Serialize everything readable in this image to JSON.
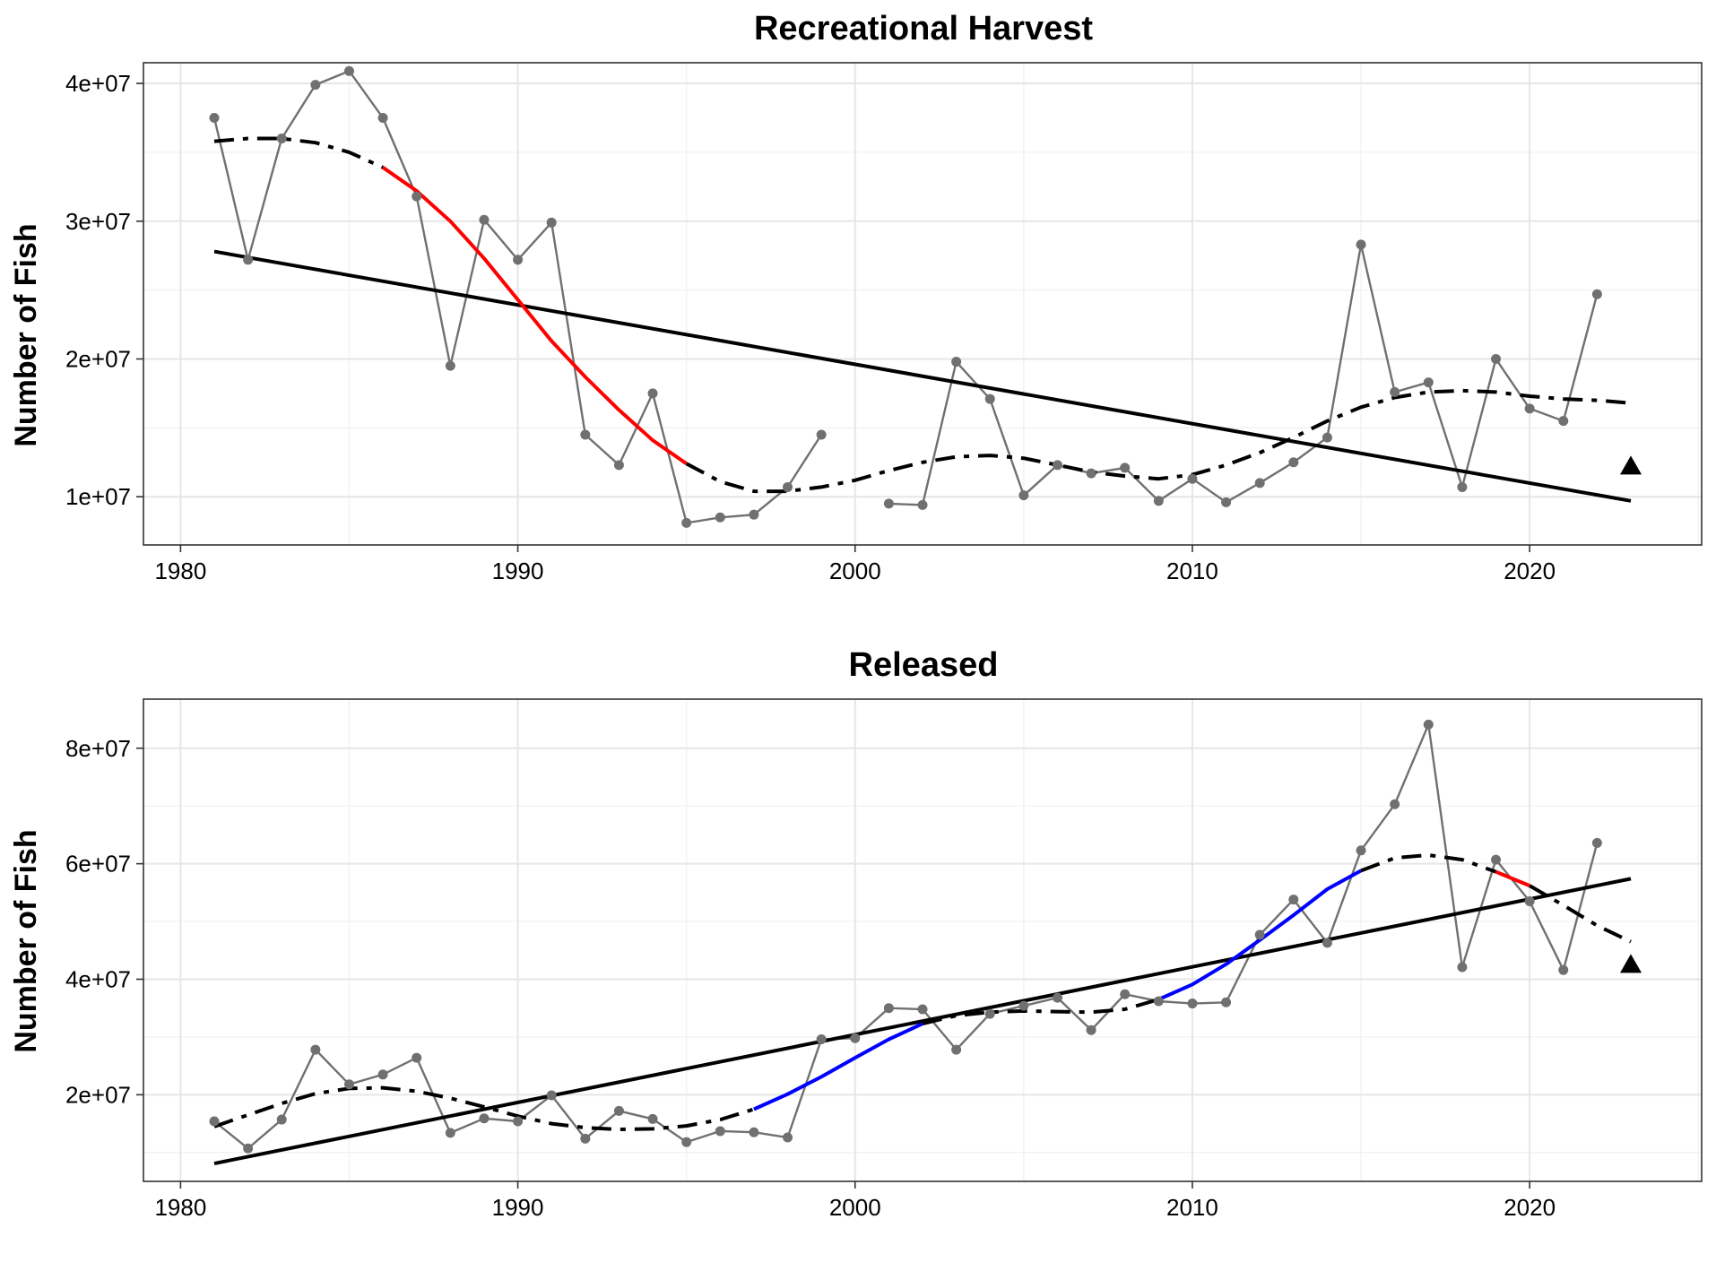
{
  "chart_data": [
    {
      "type": "line",
      "title": "Recreational Harvest",
      "xlabel": "",
      "ylabel": "Number of Fish",
      "xlim": [
        1978.9,
        2025.1
      ],
      "ylim": [
        6500000,
        41500000
      ],
      "x_ticks": [
        1980,
        1990,
        2000,
        2010,
        2020
      ],
      "x_tick_labels": [
        "1980",
        "1990",
        "2000",
        "2010",
        "2020"
      ],
      "y_ticks": [
        10000000,
        20000000,
        30000000,
        40000000
      ],
      "y_tick_labels": [
        "1e+07",
        "2e+07",
        "3e+07",
        "4e+07"
      ],
      "grid": true,
      "colors": {
        "observed": "#707070",
        "trend": "#000000",
        "decrease": "#ff0000",
        "increase": "#0000ff"
      },
      "observed": {
        "x": [
          1981,
          1982,
          1983,
          1984,
          1985,
          1986,
          1987,
          1988,
          1989,
          1990,
          1991,
          1992,
          1993,
          1994,
          1995,
          1996,
          1997,
          1998,
          1999,
          2000,
          2001,
          2002,
          2003,
          2004,
          2005,
          2006,
          2007,
          2008,
          2009,
          2010,
          2011,
          2012,
          2013,
          2014,
          2015,
          2016,
          2017,
          2018,
          2019,
          2020,
          2021,
          2022
        ],
        "y": [
          37500000,
          27200000,
          36000000,
          39900000,
          40900000,
          37500000,
          31800000,
          19500000,
          30100000,
          27200000,
          29900000,
          14500000,
          12300000,
          17500000,
          8100000,
          8500000,
          8700000,
          10700000,
          14500000,
          null,
          9500000,
          9400000,
          19800000,
          17100000,
          10100000,
          12300000,
          11700000,
          12100000,
          9700000,
          11300000,
          9600000,
          11000000,
          12500000,
          14300000,
          28300000,
          17600000,
          18300000,
          10700000,
          20000000,
          16400000,
          15500000,
          24700000
        ]
      },
      "linear_trend": {
        "x": [
          1981,
          2023
        ],
        "y": [
          27800000,
          9700000
        ]
      },
      "smooth": {
        "x": [
          1981,
          1982,
          1983,
          1984,
          1985,
          1986,
          1987,
          1988,
          1989,
          1990,
          1991,
          1992,
          1993,
          1994,
          1995,
          1996,
          1997,
          1998,
          1999,
          2000,
          2001,
          2002,
          2003,
          2004,
          2005,
          2006,
          2007,
          2008,
          2009,
          2010,
          2011,
          2012,
          2013,
          2014,
          2015,
          2016,
          2017,
          2018,
          2019,
          2020,
          2021,
          2022,
          2023
        ],
        "y": [
          35800000,
          36000000,
          36000000,
          35700000,
          35000000,
          33900000,
          32200000,
          30000000,
          27300000,
          24300000,
          21300000,
          18700000,
          16300000,
          14100000,
          12400000,
          11100000,
          10400000,
          10400000,
          10700000,
          11200000,
          11900000,
          12500000,
          12900000,
          13000000,
          12800000,
          12300000,
          11800000,
          11500000,
          11300000,
          11600000,
          12300000,
          13200000,
          14300000,
          15500000,
          16500000,
          17200000,
          17600000,
          17700000,
          17600000,
          17300000,
          17100000,
          17000000,
          16800000
        ],
        "segments": [
          {
            "from": 1981,
            "to": 1986,
            "trend": "none"
          },
          {
            "from": 1986,
            "to": 1995,
            "trend": "decrease"
          },
          {
            "from": 1995,
            "to": 2023,
            "trend": "none"
          }
        ]
      },
      "marker": {
        "x": 2023,
        "y": 12200000,
        "shape": "triangle"
      }
    },
    {
      "type": "line",
      "title": "Released",
      "xlabel": "",
      "ylabel": "Number of Fish",
      "xlim": [
        1978.9,
        2025.1
      ],
      "ylim": [
        5000000,
        88500000
      ],
      "x_ticks": [
        1980,
        1990,
        2000,
        2010,
        2020
      ],
      "x_tick_labels": [
        "1980",
        "1990",
        "2000",
        "2010",
        "2020"
      ],
      "y_ticks": [
        20000000,
        40000000,
        60000000,
        80000000
      ],
      "y_tick_labels": [
        "2e+07",
        "4e+07",
        "6e+07",
        "8e+07"
      ],
      "grid": true,
      "colors": {
        "observed": "#707070",
        "trend": "#000000",
        "decrease": "#ff0000",
        "increase": "#0000ff"
      },
      "observed": {
        "x": [
          1981,
          1982,
          1983,
          1984,
          1985,
          1986,
          1987,
          1988,
          1989,
          1990,
          1991,
          1992,
          1993,
          1994,
          1995,
          1996,
          1997,
          1998,
          1999,
          2000,
          2001,
          2002,
          2003,
          2004,
          2005,
          2006,
          2007,
          2008,
          2009,
          2010,
          2011,
          2012,
          2013,
          2014,
          2015,
          2016,
          2017,
          2018,
          2019,
          2020,
          2021,
          2022
        ],
        "y": [
          15400000,
          10700000,
          15700000,
          27800000,
          21800000,
          23500000,
          26400000,
          13400000,
          15900000,
          15400000,
          19900000,
          12400000,
          17200000,
          15800000,
          11800000,
          13700000,
          13500000,
          12600000,
          29600000,
          29800000,
          35000000,
          34800000,
          27800000,
          34000000,
          35400000,
          36800000,
          31200000,
          37400000,
          36200000,
          35800000,
          36000000,
          47700000,
          53800000,
          46300000,
          62300000,
          70300000,
          84100000,
          42100000,
          60700000,
          53500000,
          41600000,
          63600000
        ]
      },
      "linear_trend": {
        "x": [
          1981,
          2023
        ],
        "y": [
          8100000,
          57400000
        ]
      },
      "smooth": {
        "x": [
          1981,
          1982,
          1983,
          1984,
          1985,
          1986,
          1987,
          1988,
          1989,
          1990,
          1991,
          1992,
          1993,
          1994,
          1995,
          1996,
          1997,
          1998,
          1999,
          2000,
          2001,
          2002,
          2003,
          2004,
          2005,
          2006,
          2007,
          2008,
          2009,
          2010,
          2011,
          2012,
          2013,
          2014,
          2015,
          2016,
          2017,
          2018,
          2019,
          2020,
          2021,
          2022,
          2023
        ],
        "y": [
          14500000,
          16500000,
          18500000,
          20200000,
          21100000,
          21200000,
          20600000,
          19400000,
          17900000,
          16300000,
          15000000,
          14300000,
          14000000,
          14100000,
          14600000,
          15700000,
          17500000,
          20100000,
          23100000,
          26400000,
          29600000,
          32300000,
          33700000,
          34300000,
          34500000,
          34400000,
          34300000,
          34800000,
          36500000,
          39100000,
          42600000,
          46800000,
          51100000,
          55600000,
          58800000,
          61000000,
          61500000,
          60700000,
          58600000,
          56200000,
          52800000,
          49300000,
          46500000
        ],
        "segments": [
          {
            "from": 1981,
            "to": 1997,
            "trend": "none"
          },
          {
            "from": 1997,
            "to": 2002,
            "trend": "increase"
          },
          {
            "from": 2002,
            "to": 2009,
            "trend": "none"
          },
          {
            "from": 2009,
            "to": 2015,
            "trend": "increase"
          },
          {
            "from": 2015,
            "to": 2019,
            "trend": "none"
          },
          {
            "from": 2019,
            "to": 2020,
            "trend": "decrease"
          },
          {
            "from": 2020,
            "to": 2023,
            "trend": "none"
          }
        ]
      },
      "marker": {
        "x": 2023,
        "y": 42500000,
        "shape": "triangle"
      }
    }
  ]
}
